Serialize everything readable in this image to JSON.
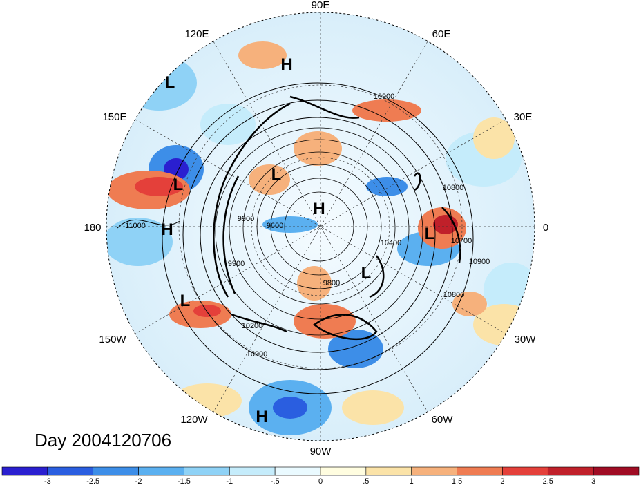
{
  "title": "Day 2004120706",
  "lon_labels": [
    "90E",
    "60E",
    "30E",
    "0",
    "30W",
    "60W",
    "90W",
    "120W",
    "150W",
    "180",
    "150E",
    "120E"
  ],
  "centers": [
    {
      "label": "H",
      "region": "central Asia"
    },
    {
      "label": "L",
      "region": "Kamchatka"
    },
    {
      "label": "L",
      "region": "western Pacific"
    },
    {
      "label": "H",
      "region": "north Pacific"
    },
    {
      "label": "L",
      "region": "Gulf of Alaska"
    },
    {
      "label": "L",
      "region": "Siberia"
    },
    {
      "label": "H",
      "region": "Arctic"
    },
    {
      "label": "L",
      "region": "Barents"
    },
    {
      "label": "L",
      "region": "Greenland"
    },
    {
      "label": "H",
      "region": "east Pacific"
    }
  ],
  "contour_labels": [
    "10900",
    "10800",
    "10700",
    "10900",
    "11000",
    "9600",
    "9900",
    "9900",
    "10200",
    "10400",
    "9800",
    "10800",
    "10900"
  ],
  "colorbar": {
    "ticks": [
      "-3",
      "-2.5",
      "-2",
      "-1.5",
      "-1",
      "-.5",
      "0",
      ".5",
      "1",
      "1.5",
      "2",
      "2.5",
      "3"
    ],
    "colors": [
      "#2a1fd0",
      "#2a5ee0",
      "#3d8ee8",
      "#5bb0f0",
      "#8fd2f6",
      "#c5ecfb",
      "#eafaff",
      "#fffde0",
      "#fbe3a8",
      "#f6b17c",
      "#ef7c52",
      "#e4403a",
      "#c0202a",
      "#a00c24"
    ]
  }
}
